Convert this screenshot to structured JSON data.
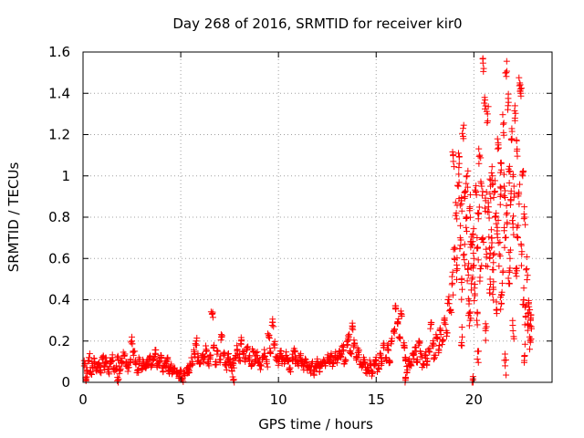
{
  "chart_data": {
    "type": "scatter",
    "title": "Day 268 of 2016, SRMTID for receiver kir0",
    "xlabel": "GPS time / hours",
    "ylabel": "SRMTID / TECUs",
    "xlim": [
      0,
      24
    ],
    "ylim": [
      0,
      1.6
    ],
    "xticks": [
      0,
      5,
      10,
      15,
      20
    ],
    "yticks": [
      0,
      0.2,
      0.4,
      0.6,
      0.8,
      1,
      1.2,
      1.4,
      1.6
    ],
    "xtick_labels": [
      "0",
      "5",
      "10",
      "15",
      "20"
    ],
    "ytick_labels": [
      "0",
      "0.2",
      "0.4",
      "0.6",
      "0.8",
      "1",
      "1.2",
      "1.4",
      "1.6"
    ],
    "grid": true,
    "marker": "+",
    "color": "#ff0000",
    "series": [
      {
        "name": "kir0",
        "points": [
          [
            0.1,
            0.09
          ],
          [
            0.2,
            0.06
          ],
          [
            0.3,
            0.12
          ],
          [
            0.4,
            0.05
          ],
          [
            0.5,
            0.08
          ],
          [
            0.6,
            0.1
          ],
          [
            0.7,
            0.07
          ],
          [
            0.8,
            0.09
          ],
          [
            0.9,
            0.06
          ],
          [
            1.0,
            0.11
          ],
          [
            1.1,
            0.08
          ],
          [
            1.2,
            0.1
          ],
          [
            1.3,
            0.05
          ],
          [
            1.4,
            0.09
          ],
          [
            1.5,
            0.12
          ],
          [
            1.6,
            0.07
          ],
          [
            1.7,
            0.08
          ],
          [
            1.8,
            0.11
          ],
          [
            1.9,
            0.06
          ],
          [
            2.0,
            0.1
          ],
          [
            2.1,
            0.13
          ],
          [
            2.2,
            0.08
          ],
          [
            2.3,
            0.07
          ],
          [
            2.4,
            0.1
          ],
          [
            2.5,
            0.2
          ],
          [
            2.6,
            0.15
          ],
          [
            2.7,
            0.09
          ],
          [
            2.8,
            0.06
          ],
          [
            2.9,
            0.11
          ],
          [
            3.0,
            0.08
          ],
          [
            3.1,
            0.1
          ],
          [
            3.2,
            0.07
          ],
          [
            3.3,
            0.09
          ],
          [
            3.4,
            0.12
          ],
          [
            3.5,
            0.08
          ],
          [
            3.6,
            0.11
          ],
          [
            3.7,
            0.14
          ],
          [
            3.8,
            0.09
          ],
          [
            3.9,
            0.1
          ],
          [
            4.0,
            0.13
          ],
          [
            4.1,
            0.07
          ],
          [
            4.2,
            0.09
          ],
          [
            4.3,
            0.1
          ],
          [
            4.4,
            0.06
          ],
          [
            4.5,
            0.08
          ],
          [
            4.6,
            0.05
          ],
          [
            4.7,
            0.07
          ],
          [
            4.8,
            0.04
          ],
          [
            4.9,
            0.03
          ],
          [
            5.0,
            0.05
          ],
          [
            5.1,
            0.02
          ],
          [
            5.2,
            0.04
          ],
          [
            5.3,
            0.06
          ],
          [
            5.4,
            0.05
          ],
          [
            5.5,
            0.08
          ],
          [
            5.6,
            0.1
          ],
          [
            5.7,
            0.14
          ],
          [
            5.8,
            0.2
          ],
          [
            5.9,
            0.12
          ],
          [
            6.0,
            0.09
          ],
          [
            6.1,
            0.13
          ],
          [
            6.2,
            0.11
          ],
          [
            6.3,
            0.16
          ],
          [
            6.4,
            0.1
          ],
          [
            6.5,
            0.12
          ],
          [
            6.6,
            0.33
          ],
          [
            6.7,
            0.18
          ],
          [
            6.8,
            0.1
          ],
          [
            6.9,
            0.15
          ],
          [
            7.0,
            0.11
          ],
          [
            7.1,
            0.22
          ],
          [
            7.2,
            0.13
          ],
          [
            7.3,
            0.08
          ],
          [
            7.4,
            0.12
          ],
          [
            7.5,
            0.1
          ],
          [
            7.6,
            0.07
          ],
          [
            7.7,
            0.09
          ],
          [
            7.8,
            0.13
          ],
          [
            7.9,
            0.16
          ],
          [
            8.0,
            0.12
          ],
          [
            8.1,
            0.2
          ],
          [
            8.2,
            0.14
          ],
          [
            8.3,
            0.1
          ],
          [
            8.4,
            0.17
          ],
          [
            8.5,
            0.12
          ],
          [
            8.6,
            0.09
          ],
          [
            8.7,
            0.15
          ],
          [
            8.8,
            0.11
          ],
          [
            8.9,
            0.13
          ],
          [
            9.0,
            0.1
          ],
          [
            9.1,
            0.08
          ],
          [
            9.2,
            0.12
          ],
          [
            9.3,
            0.14
          ],
          [
            9.4,
            0.09
          ],
          [
            9.5,
            0.22
          ],
          [
            9.6,
            0.15
          ],
          [
            9.7,
            0.29
          ],
          [
            9.8,
            0.18
          ],
          [
            9.9,
            0.12
          ],
          [
            10.0,
            0.1
          ],
          [
            10.1,
            0.14
          ],
          [
            10.2,
            0.11
          ],
          [
            10.3,
            0.09
          ],
          [
            10.4,
            0.13
          ],
          [
            10.5,
            0.1
          ],
          [
            10.6,
            0.07
          ],
          [
            10.7,
            0.12
          ],
          [
            10.8,
            0.15
          ],
          [
            10.9,
            0.11
          ],
          [
            11.0,
            0.09
          ],
          [
            11.1,
            0.12
          ],
          [
            11.2,
            0.1
          ],
          [
            11.3,
            0.08
          ],
          [
            11.4,
            0.11
          ],
          [
            11.5,
            0.07
          ],
          [
            11.6,
            0.06
          ],
          [
            11.7,
            0.09
          ],
          [
            11.8,
            0.05
          ],
          [
            11.9,
            0.08
          ],
          [
            12.0,
            0.1
          ],
          [
            12.1,
            0.07
          ],
          [
            12.2,
            0.09
          ],
          [
            12.3,
            0.11
          ],
          [
            12.4,
            0.08
          ],
          [
            12.5,
            0.12
          ],
          [
            12.6,
            0.1
          ],
          [
            12.7,
            0.14
          ],
          [
            12.8,
            0.09
          ],
          [
            12.9,
            0.13
          ],
          [
            13.0,
            0.11
          ],
          [
            13.1,
            0.15
          ],
          [
            13.2,
            0.12
          ],
          [
            13.3,
            0.17
          ],
          [
            13.4,
            0.1
          ],
          [
            13.5,
            0.18
          ],
          [
            13.6,
            0.22
          ],
          [
            13.7,
            0.14
          ],
          [
            13.8,
            0.27
          ],
          [
            13.9,
            0.19
          ],
          [
            14.0,
            0.12
          ],
          [
            14.1,
            0.15
          ],
          [
            14.2,
            0.1
          ],
          [
            14.3,
            0.08
          ],
          [
            14.4,
            0.11
          ],
          [
            14.5,
            0.06
          ],
          [
            14.6,
            0.07
          ],
          [
            14.7,
            0.09
          ],
          [
            14.8,
            0.05
          ],
          [
            14.9,
            0.08
          ],
          [
            15.0,
            0.11
          ],
          [
            15.1,
            0.07
          ],
          [
            15.2,
            0.14
          ],
          [
            15.3,
            0.1
          ],
          [
            15.4,
            0.18
          ],
          [
            15.5,
            0.12
          ],
          [
            15.6,
            0.16
          ],
          [
            15.7,
            0.1
          ],
          [
            15.8,
            0.2
          ],
          [
            15.9,
            0.25
          ],
          [
            16.0,
            0.37
          ],
          [
            16.1,
            0.29
          ],
          [
            16.2,
            0.22
          ],
          [
            16.3,
            0.33
          ],
          [
            16.4,
            0.18
          ],
          [
            16.5,
            0.12
          ],
          [
            16.6,
            0.06
          ],
          [
            16.7,
            0.1
          ],
          [
            16.8,
            0.08
          ],
          [
            16.9,
            0.13
          ],
          [
            17.0,
            0.17
          ],
          [
            17.1,
            0.11
          ],
          [
            17.2,
            0.2
          ],
          [
            17.3,
            0.14
          ],
          [
            17.4,
            0.09
          ],
          [
            17.5,
            0.13
          ],
          [
            17.6,
            0.1
          ],
          [
            17.7,
            0.15
          ],
          [
            17.8,
            0.28
          ],
          [
            17.9,
            0.19
          ],
          [
            18.0,
            0.12
          ],
          [
            18.1,
            0.22
          ],
          [
            18.2,
            0.16
          ],
          [
            18.3,
            0.25
          ],
          [
            18.4,
            0.2
          ],
          [
            18.5,
            0.3
          ],
          [
            18.6,
            0.24
          ],
          [
            18.7,
            0.4
          ],
          [
            18.8,
            0.35
          ],
          [
            18.9,
            0.48
          ],
          [
            19.0,
            0.6
          ],
          [
            18.95,
            1.07
          ],
          [
            19.1,
            0.82
          ],
          [
            19.15,
            0.55
          ],
          [
            19.2,
            0.95
          ],
          [
            19.25,
            1.06
          ],
          [
            19.3,
            0.7
          ],
          [
            19.35,
            0.88
          ],
          [
            19.4,
            0.45
          ],
          [
            19.45,
            1.23
          ],
          [
            19.5,
            0.62
          ],
          [
            19.55,
            0.9
          ],
          [
            19.6,
            0.75
          ],
          [
            19.65,
            1.0
          ],
          [
            19.7,
            0.55
          ],
          [
            19.75,
            0.38
          ],
          [
            19.8,
            0.85
          ],
          [
            19.85,
            0.68
          ],
          [
            19.9,
            0.5
          ],
          [
            19.95,
            0.72
          ],
          [
            20.0,
            0.6
          ],
          [
            20.05,
            0.42
          ],
          [
            20.1,
            0.92
          ],
          [
            20.15,
            0.3
          ],
          [
            20.2,
            0.65
          ],
          [
            20.25,
            0.82
          ],
          [
            20.3,
            1.1
          ],
          [
            20.35,
            0.55
          ],
          [
            20.4,
            0.95
          ],
          [
            20.45,
            0.7
          ],
          [
            20.5,
            1.52
          ],
          [
            20.55,
            1.38
          ],
          [
            20.6,
            0.88
          ],
          [
            20.65,
            0.62
          ],
          [
            20.7,
            1.3
          ],
          [
            20.75,
            0.85
          ],
          [
            20.8,
            0.45
          ],
          [
            20.85,
            0.95
          ],
          [
            20.9,
            0.7
          ],
          [
            20.95,
            1.0
          ],
          [
            21.0,
            0.58
          ],
          [
            21.05,
            0.92
          ],
          [
            21.1,
            0.8
          ],
          [
            21.15,
            0.35
          ],
          [
            21.2,
            0.75
          ],
          [
            21.25,
            1.15
          ],
          [
            21.3,
            0.62
          ],
          [
            21.35,
            0.9
          ],
          [
            21.4,
            1.06
          ],
          [
            21.45,
            0.48
          ],
          [
            21.5,
            1.25
          ],
          [
            21.55,
            0.95
          ],
          [
            21.6,
            0.7
          ],
          [
            21.65,
            1.5
          ],
          [
            21.7,
            0.82
          ],
          [
            21.75,
            1.34
          ],
          [
            21.8,
            1.02
          ],
          [
            21.85,
            0.6
          ],
          [
            21.9,
            0.88
          ],
          [
            21.95,
            1.18
          ],
          [
            22.0,
            0.75
          ],
          [
            22.05,
            0.95
          ],
          [
            22.1,
            1.28
          ],
          [
            22.15,
            0.55
          ],
          [
            22.2,
            1.12
          ],
          [
            22.25,
            0.7
          ],
          [
            22.3,
            0.92
          ],
          [
            22.35,
            1.45
          ],
          [
            22.4,
            1.4
          ],
          [
            22.45,
            0.62
          ],
          [
            22.5,
            1.0
          ],
          [
            22.55,
            0.4
          ],
          [
            22.6,
            0.8
          ],
          [
            22.65,
            0.32
          ],
          [
            22.7,
            0.55
          ],
          [
            22.75,
            0.28
          ],
          [
            22.8,
            0.38
          ],
          [
            22.85,
            0.22
          ],
          [
            22.9,
            0.3
          ],
          [
            22.95,
            0.26
          ],
          [
            22.6,
            0.13
          ],
          [
            21.6,
            0.08
          ],
          [
            21.0,
            0.45
          ],
          [
            20.6,
            0.25
          ],
          [
            19.8,
            0.3
          ],
          [
            20.2,
            0.15
          ],
          [
            21.4,
            0.38
          ],
          [
            22.0,
            0.25
          ],
          [
            19.4,
            0.22
          ],
          [
            20.8,
            0.65
          ],
          [
            21.8,
            0.48
          ],
          [
            0.15,
            0.01
          ],
          [
            7.7,
            0.01
          ],
          [
            16.5,
            0.01
          ],
          [
            19.95,
            0.01
          ],
          [
            1.8,
            0.01
          ]
        ]
      }
    ]
  }
}
